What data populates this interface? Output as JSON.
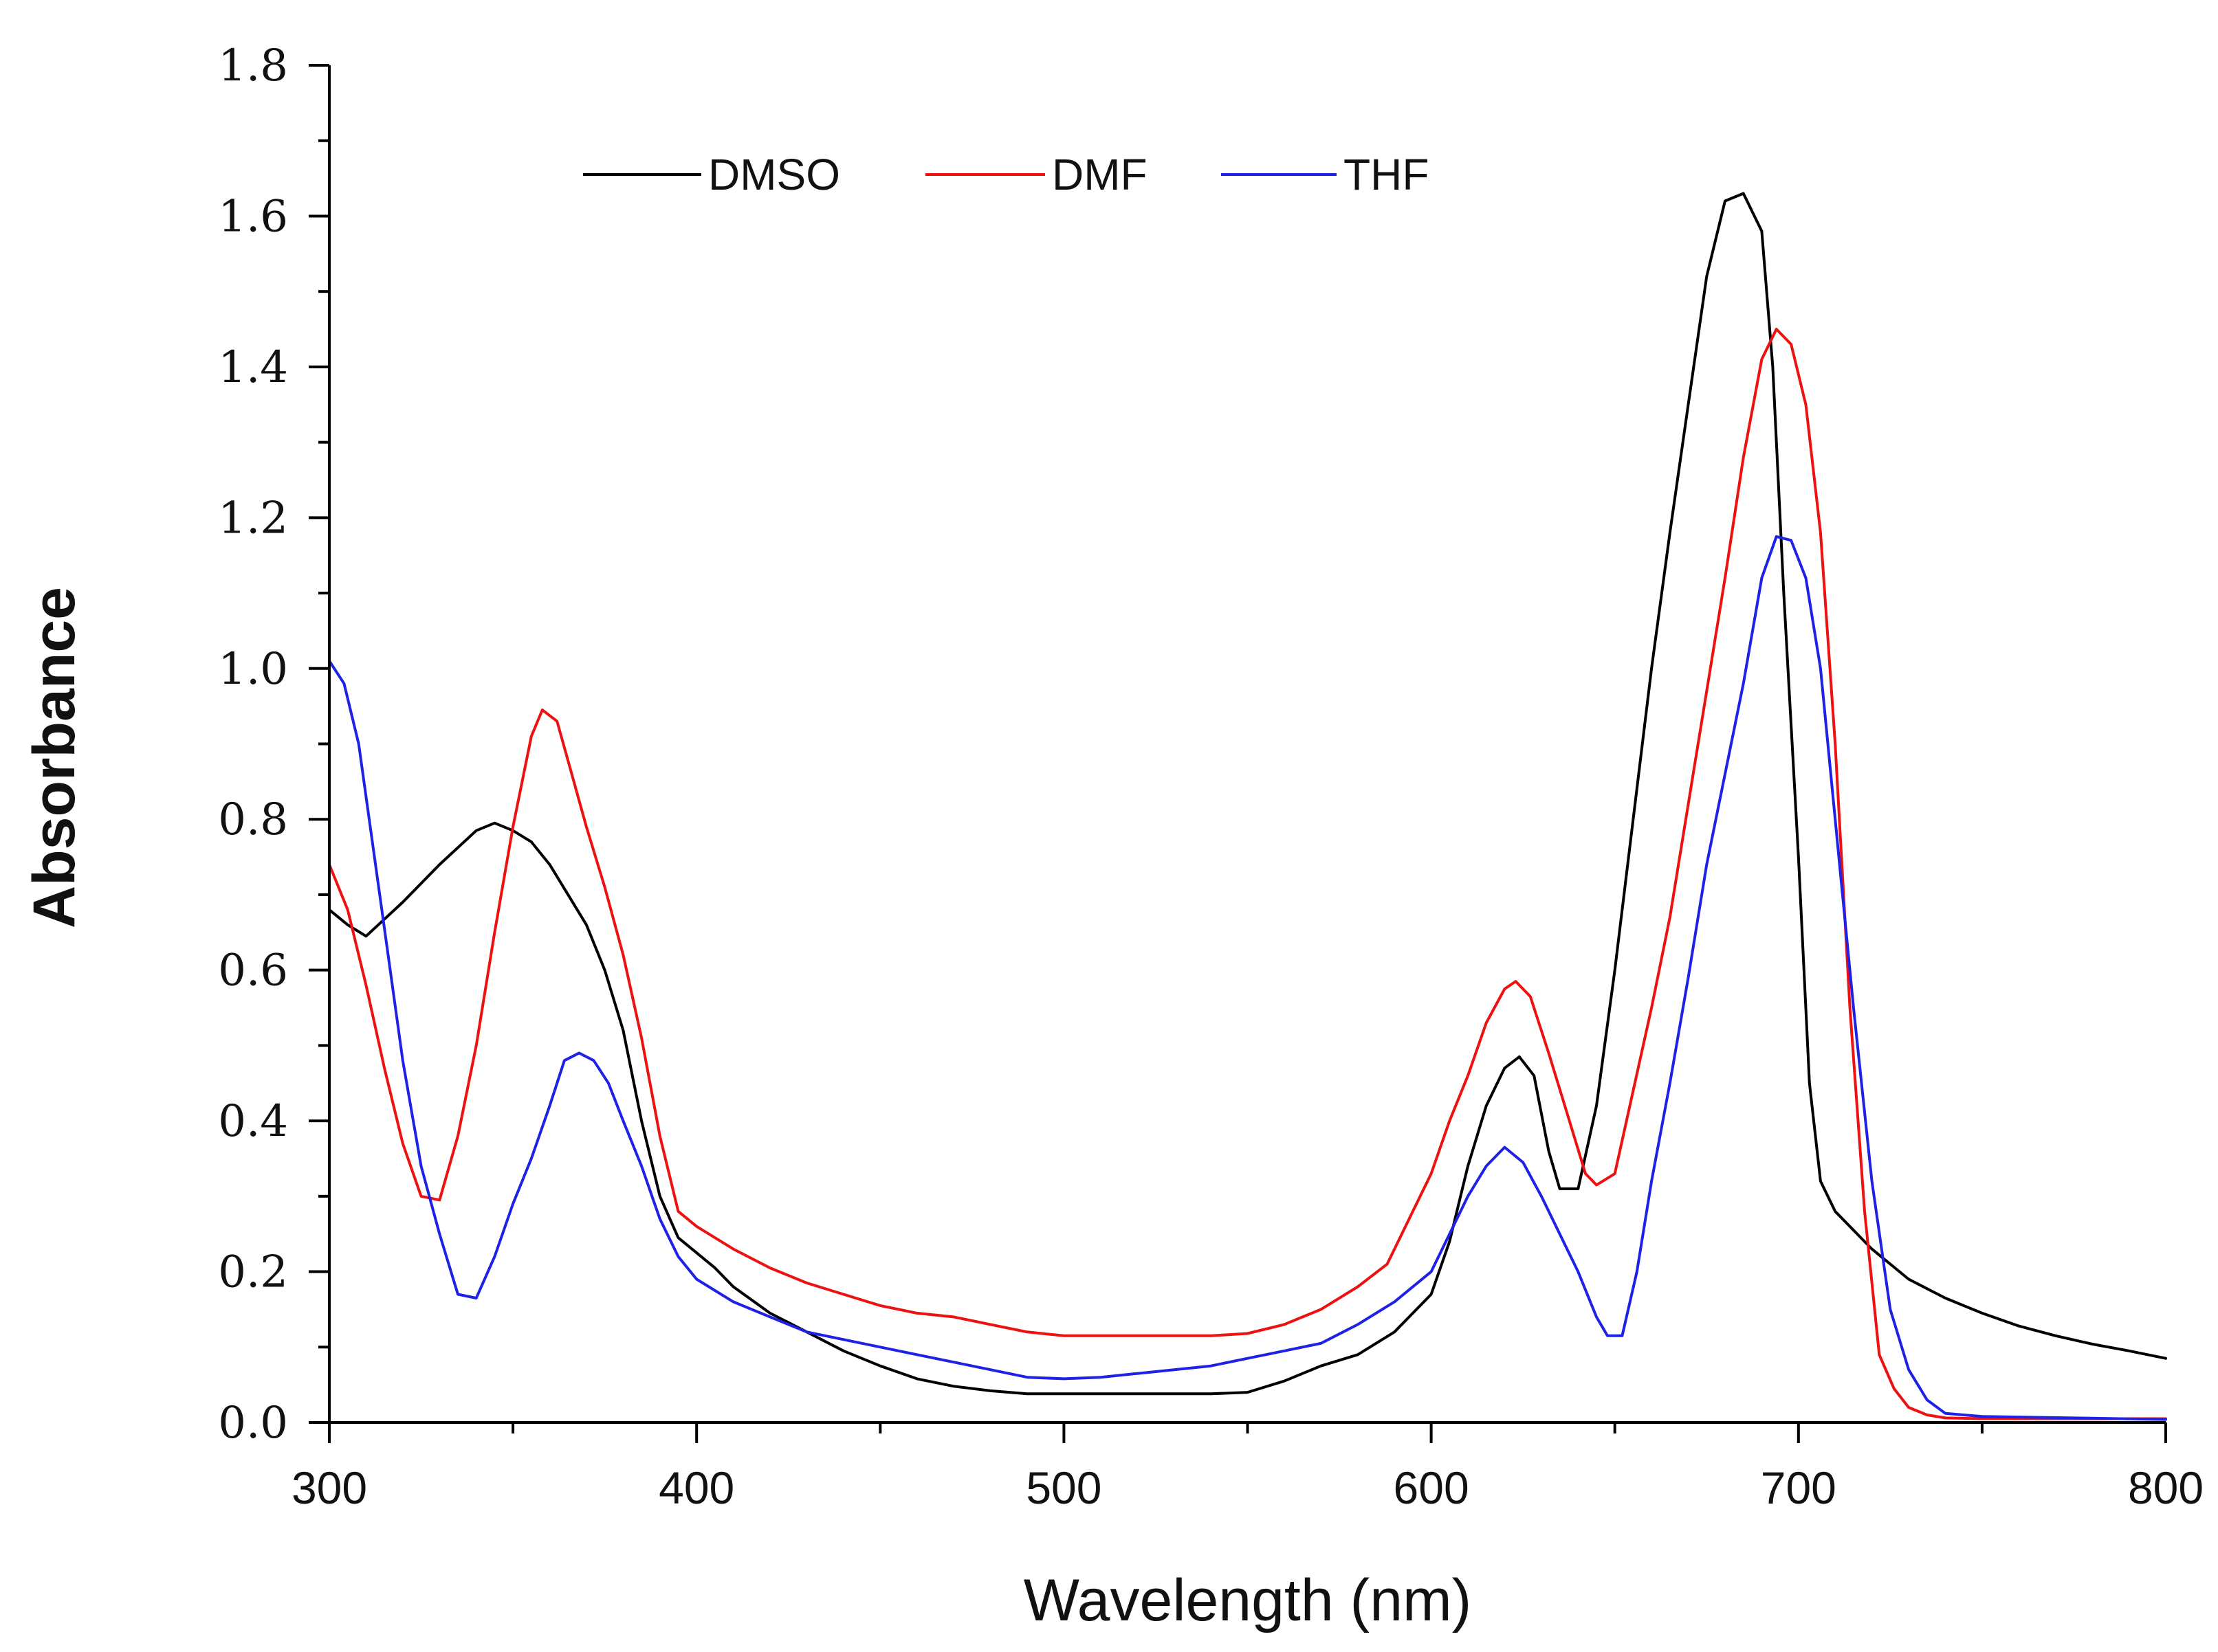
{
  "chart_data": {
    "type": "line",
    "title": "",
    "xlabel": "Wavelength (nm)",
    "ylabel": "Absorbance",
    "xlim": [
      300,
      800
    ],
    "ylim": [
      0.0,
      1.8
    ],
    "x_ticks": [
      300,
      400,
      500,
      600,
      700,
      800
    ],
    "x_tick_labels": [
      "300",
      "400",
      "500",
      "600",
      "700",
      "800"
    ],
    "y_ticks": [
      0.0,
      0.2,
      0.4,
      0.6,
      0.8,
      1.0,
      1.2,
      1.4,
      1.6,
      1.8
    ],
    "y_tick_labels": [
      "0.0",
      "0.2",
      "0.4",
      "0.6",
      "0.8",
      "1.0",
      "1.2",
      "1.4",
      "1.6",
      "1.8"
    ],
    "grid": false,
    "legend_position": "top",
    "series": [
      {
        "name": "DMSO",
        "color": "#000000",
        "points": [
          [
            300,
            0.68
          ],
          [
            305,
            0.66
          ],
          [
            310,
            0.645
          ],
          [
            320,
            0.69
          ],
          [
            330,
            0.74
          ],
          [
            340,
            0.785
          ],
          [
            345,
            0.795
          ],
          [
            350,
            0.785
          ],
          [
            355,
            0.77
          ],
          [
            360,
            0.74
          ],
          [
            365,
            0.7
          ],
          [
            370,
            0.66
          ],
          [
            375,
            0.6
          ],
          [
            380,
            0.52
          ],
          [
            385,
            0.4
          ],
          [
            390,
            0.3
          ],
          [
            395,
            0.245
          ],
          [
            400,
            0.225
          ],
          [
            405,
            0.205
          ],
          [
            410,
            0.18
          ],
          [
            420,
            0.145
          ],
          [
            430,
            0.12
          ],
          [
            440,
            0.095
          ],
          [
            450,
            0.075
          ],
          [
            460,
            0.058
          ],
          [
            470,
            0.048
          ],
          [
            480,
            0.042
          ],
          [
            490,
            0.038
          ],
          [
            500,
            0.038
          ],
          [
            510,
            0.038
          ],
          [
            520,
            0.038
          ],
          [
            530,
            0.038
          ],
          [
            540,
            0.038
          ],
          [
            550,
            0.04
          ],
          [
            560,
            0.055
          ],
          [
            570,
            0.075
          ],
          [
            580,
            0.09
          ],
          [
            590,
            0.12
          ],
          [
            600,
            0.17
          ],
          [
            605,
            0.24
          ],
          [
            610,
            0.34
          ],
          [
            615,
            0.42
          ],
          [
            620,
            0.47
          ],
          [
            624,
            0.485
          ],
          [
            628,
            0.46
          ],
          [
            632,
            0.36
          ],
          [
            635,
            0.31
          ],
          [
            640,
            0.31
          ],
          [
            645,
            0.42
          ],
          [
            650,
            0.6
          ],
          [
            655,
            0.8
          ],
          [
            660,
            1.0
          ],
          [
            665,
            1.18
          ],
          [
            670,
            1.35
          ],
          [
            675,
            1.52
          ],
          [
            680,
            1.62
          ],
          [
            685,
            1.63
          ],
          [
            690,
            1.58
          ],
          [
            693,
            1.4
          ],
          [
            696,
            1.1
          ],
          [
            700,
            0.75
          ],
          [
            703,
            0.45
          ],
          [
            706,
            0.32
          ],
          [
            710,
            0.28
          ],
          [
            720,
            0.23
          ],
          [
            730,
            0.19
          ],
          [
            740,
            0.165
          ],
          [
            750,
            0.145
          ],
          [
            760,
            0.128
          ],
          [
            770,
            0.115
          ],
          [
            780,
            0.104
          ],
          [
            790,
            0.095
          ],
          [
            800,
            0.085
          ]
        ]
      },
      {
        "name": "DMF",
        "color": "#ee1111",
        "points": [
          [
            300,
            0.74
          ],
          [
            305,
            0.68
          ],
          [
            310,
            0.58
          ],
          [
            315,
            0.47
          ],
          [
            320,
            0.37
          ],
          [
            325,
            0.3
          ],
          [
            330,
            0.295
          ],
          [
            335,
            0.38
          ],
          [
            340,
            0.5
          ],
          [
            345,
            0.65
          ],
          [
            350,
            0.79
          ],
          [
            355,
            0.91
          ],
          [
            358,
            0.945
          ],
          [
            362,
            0.93
          ],
          [
            366,
            0.86
          ],
          [
            370,
            0.79
          ],
          [
            375,
            0.71
          ],
          [
            380,
            0.62
          ],
          [
            385,
            0.51
          ],
          [
            390,
            0.38
          ],
          [
            395,
            0.28
          ],
          [
            400,
            0.26
          ],
          [
            410,
            0.23
          ],
          [
            420,
            0.205
          ],
          [
            430,
            0.185
          ],
          [
            440,
            0.17
          ],
          [
            450,
            0.155
          ],
          [
            460,
            0.145
          ],
          [
            470,
            0.14
          ],
          [
            480,
            0.13
          ],
          [
            490,
            0.12
          ],
          [
            500,
            0.115
          ],
          [
            510,
            0.115
          ],
          [
            520,
            0.115
          ],
          [
            530,
            0.115
          ],
          [
            540,
            0.115
          ],
          [
            550,
            0.118
          ],
          [
            560,
            0.13
          ],
          [
            570,
            0.15
          ],
          [
            580,
            0.18
          ],
          [
            588,
            0.21
          ],
          [
            595,
            0.28
          ],
          [
            600,
            0.33
          ],
          [
            605,
            0.4
          ],
          [
            610,
            0.46
          ],
          [
            615,
            0.53
          ],
          [
            620,
            0.575
          ],
          [
            623,
            0.585
          ],
          [
            627,
            0.565
          ],
          [
            632,
            0.49
          ],
          [
            637,
            0.41
          ],
          [
            642,
            0.33
          ],
          [
            645,
            0.315
          ],
          [
            650,
            0.33
          ],
          [
            655,
            0.44
          ],
          [
            660,
            0.55
          ],
          [
            665,
            0.67
          ],
          [
            670,
            0.82
          ],
          [
            675,
            0.97
          ],
          [
            680,
            1.12
          ],
          [
            685,
            1.28
          ],
          [
            690,
            1.41
          ],
          [
            694,
            1.45
          ],
          [
            698,
            1.43
          ],
          [
            702,
            1.35
          ],
          [
            706,
            1.18
          ],
          [
            710,
            0.9
          ],
          [
            714,
            0.55
          ],
          [
            718,
            0.28
          ],
          [
            722,
            0.09
          ],
          [
            726,
            0.045
          ],
          [
            730,
            0.02
          ],
          [
            735,
            0.01
          ],
          [
            740,
            0.006
          ],
          [
            750,
            0.005
          ],
          [
            800,
            0.005
          ]
        ]
      },
      {
        "name": "THF",
        "color": "#1e22e6",
        "points": [
          [
            300,
            1.01
          ],
          [
            304,
            0.98
          ],
          [
            308,
            0.9
          ],
          [
            312,
            0.76
          ],
          [
            316,
            0.62
          ],
          [
            320,
            0.48
          ],
          [
            325,
            0.34
          ],
          [
            330,
            0.25
          ],
          [
            335,
            0.17
          ],
          [
            340,
            0.165
          ],
          [
            345,
            0.22
          ],
          [
            350,
            0.29
          ],
          [
            355,
            0.35
          ],
          [
            360,
            0.42
          ],
          [
            364,
            0.48
          ],
          [
            368,
            0.49
          ],
          [
            372,
            0.48
          ],
          [
            376,
            0.45
          ],
          [
            380,
            0.4
          ],
          [
            385,
            0.34
          ],
          [
            390,
            0.27
          ],
          [
            395,
            0.22
          ],
          [
            400,
            0.19
          ],
          [
            410,
            0.16
          ],
          [
            420,
            0.14
          ],
          [
            430,
            0.12
          ],
          [
            440,
            0.11
          ],
          [
            450,
            0.1
          ],
          [
            460,
            0.09
          ],
          [
            470,
            0.08
          ],
          [
            480,
            0.07
          ],
          [
            490,
            0.06
          ],
          [
            500,
            0.058
          ],
          [
            510,
            0.06
          ],
          [
            520,
            0.065
          ],
          [
            530,
            0.07
          ],
          [
            540,
            0.075
          ],
          [
            550,
            0.085
          ],
          [
            560,
            0.095
          ],
          [
            570,
            0.105
          ],
          [
            580,
            0.13
          ],
          [
            590,
            0.16
          ],
          [
            600,
            0.2
          ],
          [
            605,
            0.25
          ],
          [
            610,
            0.3
          ],
          [
            615,
            0.34
          ],
          [
            620,
            0.365
          ],
          [
            625,
            0.345
          ],
          [
            630,
            0.3
          ],
          [
            635,
            0.25
          ],
          [
            640,
            0.2
          ],
          [
            645,
            0.14
          ],
          [
            648,
            0.115
          ],
          [
            652,
            0.115
          ],
          [
            656,
            0.2
          ],
          [
            660,
            0.32
          ],
          [
            665,
            0.45
          ],
          [
            670,
            0.59
          ],
          [
            675,
            0.74
          ],
          [
            680,
            0.86
          ],
          [
            685,
            0.98
          ],
          [
            690,
            1.12
          ],
          [
            694,
            1.175
          ],
          [
            698,
            1.17
          ],
          [
            702,
            1.12
          ],
          [
            706,
            1.0
          ],
          [
            710,
            0.8
          ],
          [
            715,
            0.55
          ],
          [
            720,
            0.32
          ],
          [
            725,
            0.15
          ],
          [
            730,
            0.07
          ],
          [
            735,
            0.03
          ],
          [
            740,
            0.012
          ],
          [
            750,
            0.008
          ],
          [
            800,
            0.004
          ]
        ]
      }
    ]
  }
}
